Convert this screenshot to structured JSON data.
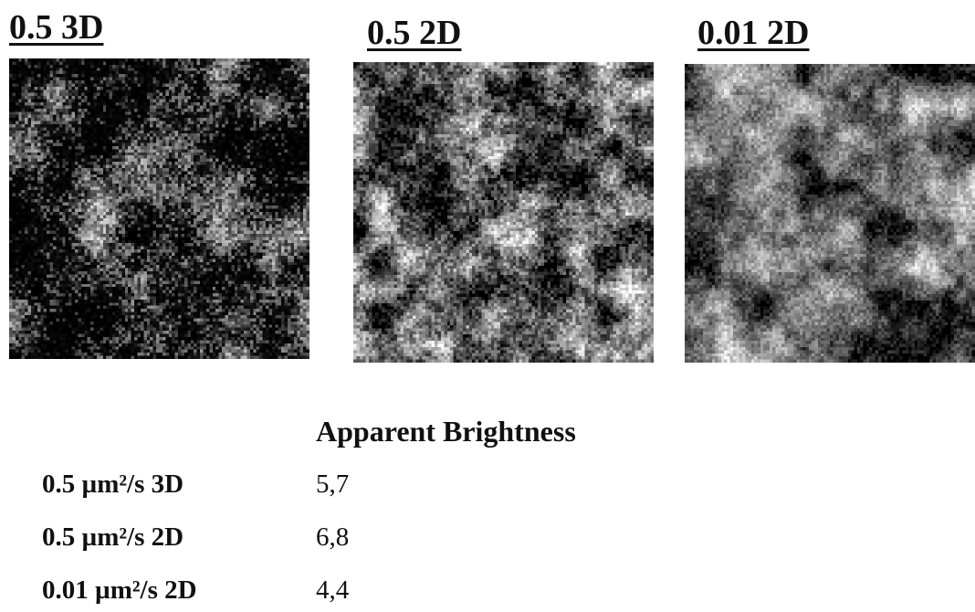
{
  "panels": [
    {
      "title": "0.5 3D",
      "diffusion": 0.5,
      "dimension": "3D"
    },
    {
      "title": "0.5 2D",
      "diffusion": 0.5,
      "dimension": "2D"
    },
    {
      "title": "0.01 2D",
      "diffusion": 0.01,
      "dimension": "2D"
    }
  ],
  "table": {
    "header": "Apparent Brightness",
    "rows": [
      {
        "label": "0.5 µm²/s 3D",
        "value": "5,7"
      },
      {
        "label": "0.5 µm²/s 2D",
        "value": "6,8"
      },
      {
        "label": "0.01 µm²/s 2D",
        "value": "4,4"
      }
    ]
  },
  "colors": {
    "background": "#ffffff",
    "text": "#111111",
    "image_background": "#000000"
  }
}
